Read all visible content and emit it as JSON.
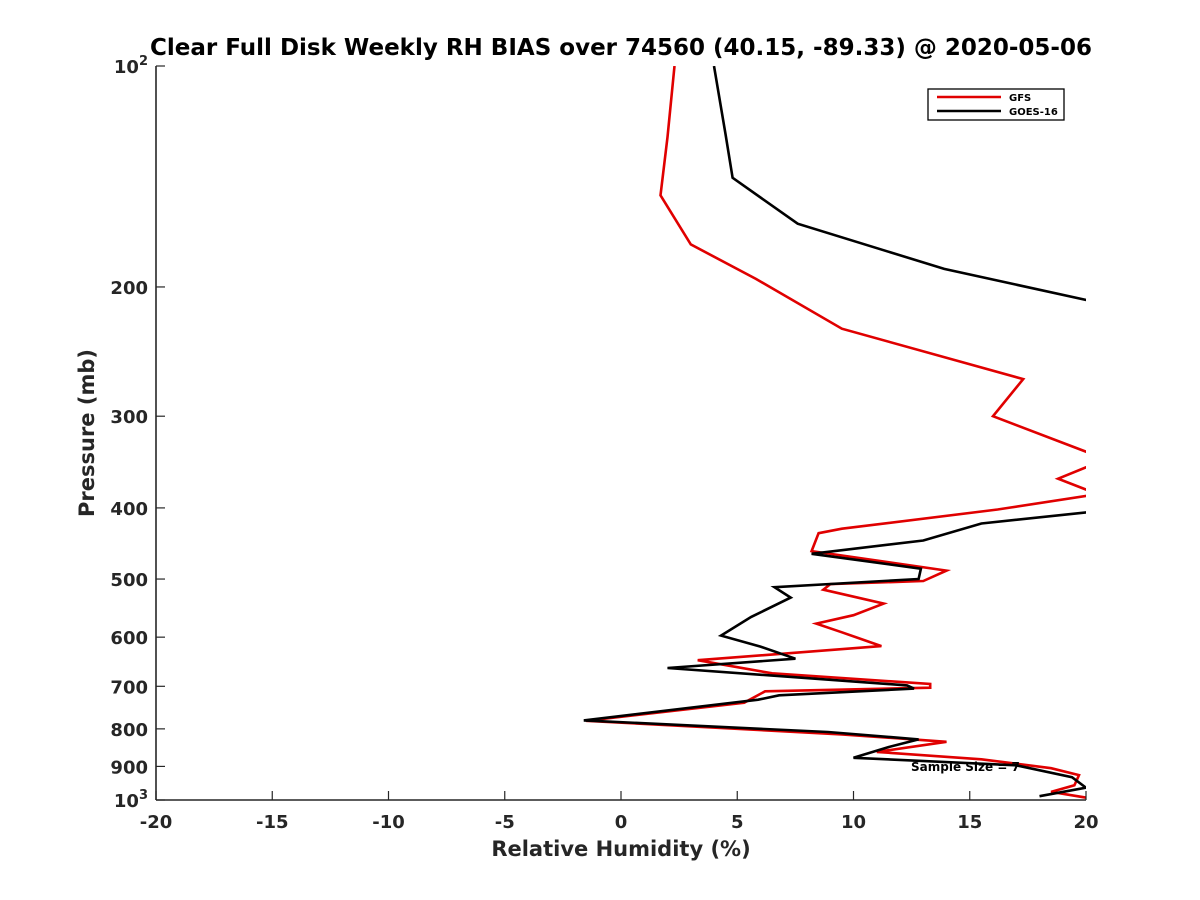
{
  "chart_data": {
    "type": "line",
    "title": "Clear Full Disk Weekly RH BIAS over 74560 (40.15, -89.33) @ 2020-05-06",
    "xlabel": "Relative Humidity (%)",
    "ylabel": "Pressure (mb)",
    "xlim": [
      -20,
      20
    ],
    "ylim": [
      100,
      1000
    ],
    "y_scale": "log",
    "y_reversed": true,
    "grid": false,
    "legend_position": "top-right",
    "x_ticks": [
      "-20",
      "-15",
      "-10",
      "-5",
      "0",
      "5",
      "10",
      "15",
      "20"
    ],
    "y_tick_values": [
      100,
      200,
      300,
      400,
      500,
      600,
      700,
      800,
      900,
      1000
    ],
    "y_ticks": [
      {
        "base": "10",
        "exp": "2"
      },
      {
        "base": "200",
        "exp": ""
      },
      {
        "base": "300",
        "exp": ""
      },
      {
        "base": "400",
        "exp": ""
      },
      {
        "base": "500",
        "exp": ""
      },
      {
        "base": "600",
        "exp": ""
      },
      {
        "base": "700",
        "exp": ""
      },
      {
        "base": "800",
        "exp": ""
      },
      {
        "base": "900",
        "exp": ""
      },
      {
        "base": "10",
        "exp": "3"
      }
    ],
    "annotation": "Sample Size = 7",
    "series": [
      {
        "name": "GFS",
        "color": "#e00000",
        "segments": [
          [
            [
              2.3,
              100
            ],
            [
              2.0,
              125
            ],
            [
              1.7,
              150
            ],
            [
              3.0,
              175
            ],
            [
              5.8,
              195
            ],
            [
              9.5,
              228
            ],
            [
              17.3,
              267
            ],
            [
              16.0,
              300
            ],
            [
              20.5,
              340
            ]
          ],
          [
            [
              20.5,
              347
            ],
            [
              18.8,
              365
            ],
            [
              20.5,
              383
            ]
          ],
          [
            [
              20.5,
              383
            ],
            [
              16.2,
              402
            ],
            [
              9.5,
              427
            ],
            [
              8.5,
              433
            ],
            [
              8.2,
              458
            ],
            [
              14.0,
              487
            ],
            [
              13.0,
              503
            ],
            [
              9.0,
              508
            ],
            [
              8.7,
              517
            ],
            [
              11.3,
              540
            ],
            [
              10.0,
              560
            ],
            [
              8.4,
              575
            ],
            [
              9.5,
              591
            ],
            [
              11.2,
              617
            ],
            [
              3.3,
              645
            ],
            [
              6.5,
              672
            ],
            [
              13.3,
              695
            ],
            [
              13.3,
              703
            ],
            [
              6.2,
              711
            ],
            [
              5.3,
              737
            ],
            [
              -1.5,
              780
            ],
            [
              9.5,
              814
            ],
            [
              14.0,
              833
            ],
            [
              11.0,
              860
            ],
            [
              15.5,
              880
            ],
            [
              18.5,
              905
            ],
            [
              19.7,
              925
            ],
            [
              19.5,
              955
            ],
            [
              18.5,
              975
            ],
            [
              20.2,
              995
            ]
          ]
        ]
      },
      {
        "name": "GOES-16",
        "color": "#000000",
        "segments": [
          [
            [
              4.0,
              100
            ],
            [
              4.5,
              124
            ],
            [
              4.8,
              142
            ],
            [
              7.6,
              164
            ],
            [
              13.9,
              189
            ],
            [
              20.2,
              209
            ]
          ],
          [
            [
              20.2,
              405
            ],
            [
              15.5,
              420
            ],
            [
              13.0,
              443
            ],
            [
              8.2,
              462
            ],
            [
              12.9,
              484
            ],
            [
              12.8,
              500
            ],
            [
              6.6,
              513
            ],
            [
              7.3,
              530
            ],
            [
              5.6,
              563
            ],
            [
              4.3,
              597
            ],
            [
              6.0,
              618
            ],
            [
              7.5,
              642
            ],
            [
              2.0,
              661
            ],
            [
              12.3,
              698
            ],
            [
              12.6,
              705
            ],
            [
              6.8,
              720
            ],
            [
              5.9,
              730
            ],
            [
              -1.6,
              779
            ],
            [
              8.9,
              808
            ],
            [
              12.8,
              827
            ],
            [
              11.5,
              847
            ],
            [
              10.0,
              876
            ],
            [
              17.0,
              897
            ],
            [
              19.4,
              931
            ],
            [
              20.0,
              962
            ],
            [
              18.0,
              988
            ]
          ]
        ]
      }
    ]
  }
}
